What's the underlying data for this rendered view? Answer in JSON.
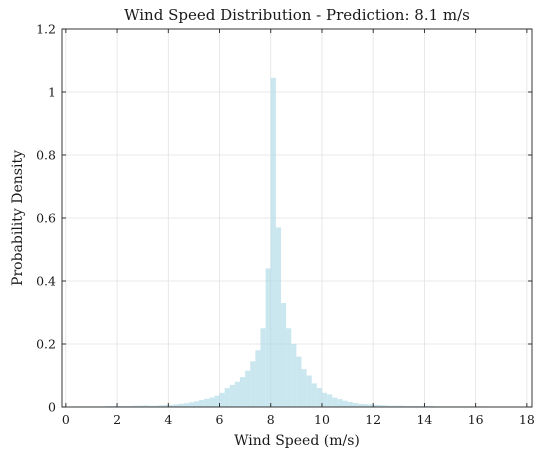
{
  "chart_data": {
    "type": "bar",
    "title": "Wind Speed Distribution - Prediction: 8.1 m/s",
    "xlabel": "Wind Speed (m/s)",
    "ylabel": "Probability Density",
    "xlim": [
      -0.15,
      18.2
    ],
    "ylim": [
      0,
      1.2
    ],
    "grid": true,
    "bar_color": "#add8e6",
    "bar_opacity": 0.65,
    "x_ticks": [
      "0",
      "2",
      "4",
      "6",
      "8",
      "10",
      "12",
      "14",
      "16",
      "18"
    ],
    "y_ticks": [
      "0",
      "0.2",
      "0.4",
      "0.6",
      "0.8",
      "1",
      "1.2"
    ],
    "bin_width": 0.2,
    "x": [
      0.3,
      0.5,
      0.7,
      0.9,
      1.1,
      1.3,
      1.5,
      1.7,
      1.9,
      2.1,
      2.3,
      2.5,
      2.7,
      2.9,
      3.1,
      3.3,
      3.5,
      3.7,
      3.9,
      4.1,
      4.3,
      4.5,
      4.7,
      4.9,
      5.1,
      5.3,
      5.5,
      5.7,
      5.9,
      6.1,
      6.3,
      6.5,
      6.7,
      6.9,
      7.1,
      7.3,
      7.5,
      7.7,
      7.9,
      8.1,
      8.3,
      8.5,
      8.7,
      8.9,
      9.1,
      9.3,
      9.5,
      9.7,
      9.9,
      10.1,
      10.3,
      10.5,
      10.7,
      10.9,
      11.1,
      11.3,
      11.5,
      11.7,
      11.9,
      12.1,
      12.3,
      12.5,
      12.7,
      12.9,
      13.1,
      13.3,
      13.5,
      13.7,
      13.9,
      14.1,
      14.3,
      14.5,
      14.7,
      14.9,
      15.1,
      15.3,
      15.5,
      15.7,
      15.9,
      16.1,
      16.3,
      16.5,
      16.7,
      16.9,
      17.1,
      17.3,
      17.5
    ],
    "values": [
      0.002,
      0.002,
      0.002,
      0.002,
      0.002,
      0.002,
      0.002,
      0.003,
      0.003,
      0.003,
      0.003,
      0.003,
      0.004,
      0.004,
      0.005,
      0.004,
      0.004,
      0.005,
      0.006,
      0.006,
      0.008,
      0.01,
      0.012,
      0.015,
      0.018,
      0.022,
      0.026,
      0.03,
      0.036,
      0.045,
      0.06,
      0.07,
      0.08,
      0.095,
      0.115,
      0.145,
      0.18,
      0.25,
      0.44,
      1.045,
      0.57,
      0.33,
      0.25,
      0.2,
      0.16,
      0.12,
      0.1,
      0.075,
      0.06,
      0.045,
      0.04,
      0.03,
      0.025,
      0.02,
      0.016,
      0.013,
      0.01,
      0.009,
      0.008,
      0.007,
      0.006,
      0.005,
      0.004,
      0.004,
      0.004,
      0.003,
      0.003,
      0.003,
      0.003,
      0.003,
      0.003,
      0.002,
      0.002,
      0.002,
      0.002,
      0.002,
      0.002,
      0.002,
      0.002,
      0.002,
      0.002,
      0.001,
      0.001,
      0.001,
      0.001,
      0.001,
      0.001
    ]
  }
}
